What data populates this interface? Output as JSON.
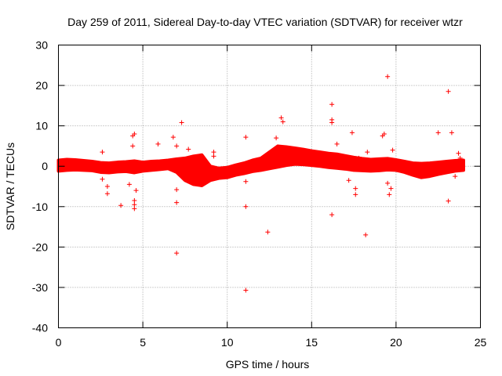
{
  "chart_data": {
    "type": "scatter",
    "title": "Day 259 of 2011, Sidereal Day-to-day VTEC variation (SDTVAR) for receiver wtzr",
    "xlabel": "GPS time / hours",
    "ylabel": "SDTVAR / TECUs",
    "xlim": [
      0,
      25
    ],
    "ylim": [
      -40,
      30
    ],
    "xticks": [
      0,
      5,
      10,
      15,
      20,
      25
    ],
    "yticks": [
      -40,
      -30,
      -20,
      -10,
      0,
      10,
      20,
      30
    ],
    "grid": true,
    "marker": "+",
    "color": "#ff0000",
    "series": [
      {
        "name": "SDTVAR",
        "band": {
          "x": [
            0,
            0.5,
            1,
            1.5,
            2,
            2.5,
            3,
            3.5,
            4,
            4.5,
            5,
            5.5,
            6,
            6.5,
            7,
            7.5,
            8,
            8.5,
            9,
            9.5,
            10,
            10.5,
            11,
            11.5,
            12,
            12.5,
            13,
            13.5,
            14,
            14.5,
            15,
            15.5,
            16,
            16.5,
            17,
            17.5,
            18,
            18.5,
            19,
            19.5,
            20,
            20.5,
            21,
            21.5,
            22,
            22.5,
            23,
            23.5,
            24
          ],
          "upper": [
            1.5,
            1.7,
            1.6,
            1.4,
            1.2,
            0.9,
            0.8,
            1.0,
            1.1,
            1.3,
            1.0,
            1.2,
            1.3,
            1.5,
            1.8,
            2.0,
            2.5,
            2.8,
            0.0,
            -0.5,
            -0.3,
            0.3,
            0.8,
            1.5,
            2.0,
            3.5,
            5.0,
            4.8,
            4.5,
            4.2,
            3.8,
            3.5,
            3.2,
            3.0,
            2.6,
            2.2,
            1.9,
            1.7,
            1.8,
            1.9,
            1.6,
            1.2,
            0.8,
            0.7,
            0.8,
            1.0,
            1.2,
            1.4,
            1.5
          ],
          "lower": [
            -1.2,
            -1.0,
            -0.9,
            -1.0,
            -1.1,
            -1.5,
            -1.6,
            -1.4,
            -1.3,
            -1.6,
            -1.2,
            -1.0,
            -0.8,
            -0.6,
            -1.5,
            -3.5,
            -4.5,
            -4.8,
            -3.5,
            -3.0,
            -2.8,
            -2.2,
            -1.8,
            -1.3,
            -1.0,
            -0.6,
            -0.2,
            0.2,
            0.5,
            0.4,
            0.2,
            0.0,
            -0.3,
            -0.5,
            -0.7,
            -1.0,
            -1.1,
            -1.2,
            -1.1,
            -0.9,
            -1.0,
            -1.5,
            -2.2,
            -2.8,
            -2.5,
            -2.0,
            -1.6,
            -1.2,
            -1.0
          ]
        },
        "outliers": [
          {
            "x": 2.6,
            "y": 3.5
          },
          {
            "x": 2.6,
            "y": -3.2
          },
          {
            "x": 2.9,
            "y": -5.0
          },
          {
            "x": 2.9,
            "y": -6.8
          },
          {
            "x": 3.7,
            "y": -9.7
          },
          {
            "x": 4.2,
            "y": -4.5
          },
          {
            "x": 4.4,
            "y": 7.5
          },
          {
            "x": 4.5,
            "y": 8.0
          },
          {
            "x": 4.4,
            "y": 5.0
          },
          {
            "x": 4.5,
            "y": -8.5
          },
          {
            "x": 4.5,
            "y": -9.5
          },
          {
            "x": 4.5,
            "y": -10.5
          },
          {
            "x": 4.6,
            "y": -6.0
          },
          {
            "x": 5.9,
            "y": 5.5
          },
          {
            "x": 6.8,
            "y": 7.2
          },
          {
            "x": 7.0,
            "y": 5.0
          },
          {
            "x": 7.0,
            "y": -5.8
          },
          {
            "x": 7.0,
            "y": -9.0
          },
          {
            "x": 7.0,
            "y": -21.5
          },
          {
            "x": 7.3,
            "y": 10.8
          },
          {
            "x": 7.7,
            "y": 4.2
          },
          {
            "x": 9.2,
            "y": 3.5
          },
          {
            "x": 9.2,
            "y": 2.5
          },
          {
            "x": 11.1,
            "y": 7.2
          },
          {
            "x": 11.1,
            "y": -3.8
          },
          {
            "x": 11.1,
            "y": -10.0
          },
          {
            "x": 11.1,
            "y": -30.7
          },
          {
            "x": 12.4,
            "y": -16.3
          },
          {
            "x": 12.9,
            "y": 7.0
          },
          {
            "x": 13.2,
            "y": 12.0
          },
          {
            "x": 13.3,
            "y": 11.0
          },
          {
            "x": 16.2,
            "y": 15.3
          },
          {
            "x": 16.2,
            "y": 11.5
          },
          {
            "x": 16.2,
            "y": 10.8
          },
          {
            "x": 16.2,
            "y": -12.0
          },
          {
            "x": 16.5,
            "y": 5.5
          },
          {
            "x": 17.1,
            "y": 2.0
          },
          {
            "x": 17.2,
            "y": -3.5
          },
          {
            "x": 17.4,
            "y": 8.3
          },
          {
            "x": 17.6,
            "y": -5.5
          },
          {
            "x": 17.6,
            "y": -7.0
          },
          {
            "x": 17.8,
            "y": 2.0
          },
          {
            "x": 18.2,
            "y": -17.0
          },
          {
            "x": 18.3,
            "y": 3.5
          },
          {
            "x": 19.2,
            "y": 7.5
          },
          {
            "x": 19.3,
            "y": 8.0
          },
          {
            "x": 19.5,
            "y": 22.2
          },
          {
            "x": 19.5,
            "y": -4.2
          },
          {
            "x": 19.7,
            "y": -5.5
          },
          {
            "x": 19.6,
            "y": -7.0
          },
          {
            "x": 19.8,
            "y": 4.0
          },
          {
            "x": 22.5,
            "y": 8.3
          },
          {
            "x": 23.1,
            "y": 18.5
          },
          {
            "x": 23.1,
            "y": -8.6
          },
          {
            "x": 23.3,
            "y": 8.3
          },
          {
            "x": 23.5,
            "y": -2.5
          },
          {
            "x": 23.7,
            "y": 3.2
          },
          {
            "x": 23.8,
            "y": 2.0
          }
        ]
      }
    ]
  }
}
